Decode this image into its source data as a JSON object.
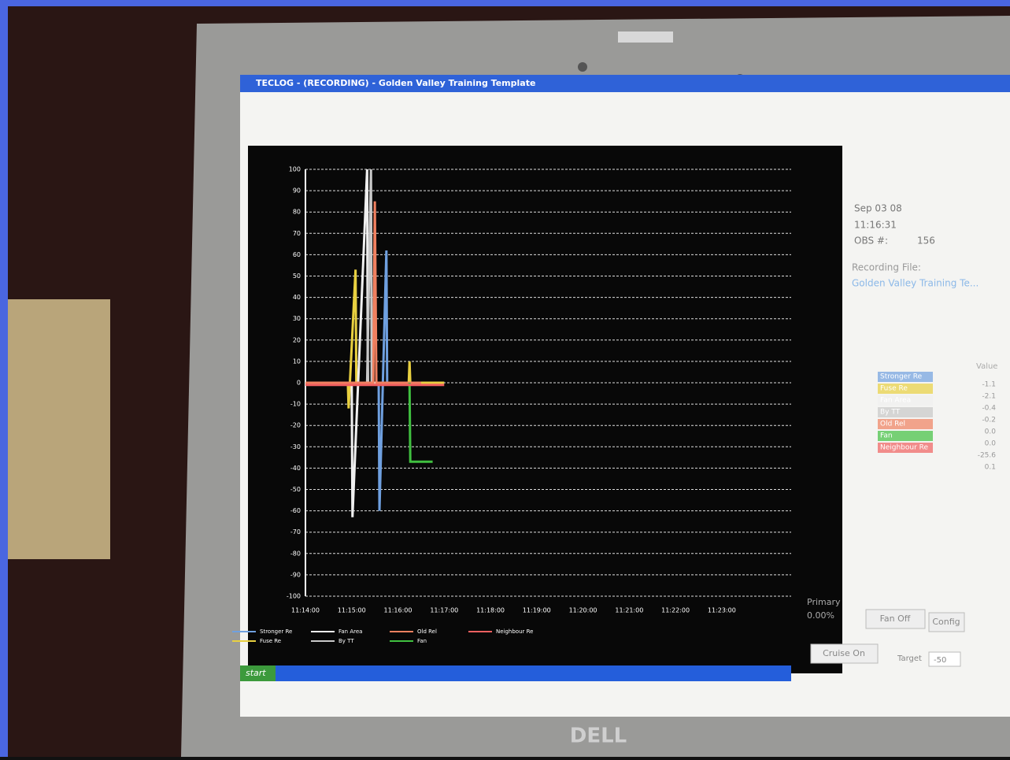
{
  "window": {
    "title": "TECLOG - (RECORDING) - Golden Valley Training Template"
  },
  "status": {
    "date": "Sep 03 08",
    "time": "11:16:31",
    "obs_label": "OBS #:",
    "obs": "156",
    "file_label": "Recording File:",
    "file": "Golden Valley Training Te..."
  },
  "readings": {
    "header": "Value",
    "values": [
      "-1.1",
      "-2.1",
      "-0.4",
      "-0.2",
      "0.0",
      "0.0",
      "-25.6",
      "0.1"
    ]
  },
  "controls": {
    "primary_label": "Primary",
    "primary": "0.00%",
    "fan": "Fan Off",
    "config": "Config",
    "cruise": "Cruise On",
    "target_label": "Target",
    "target": "-50"
  },
  "taskbar": {
    "start": "start"
  },
  "device": {
    "brand": "DELL"
  },
  "chart_data": {
    "type": "line",
    "xlim": [
      "11:14:00",
      "11:24:30"
    ],
    "xticks": [
      "11:14:00",
      "11:15:00",
      "11:16:00",
      "11:17:00",
      "11:18:00",
      "11:19:00",
      "11:20:00",
      "11:21:00",
      "11:22:00",
      "11:23:00"
    ],
    "ylim": [
      -100,
      100
    ],
    "yticks": [
      100,
      90,
      80,
      70,
      60,
      50,
      40,
      30,
      20,
      10,
      0,
      -10,
      -20,
      -30,
      -40,
      -50,
      -60,
      -70,
      -80,
      -90,
      -100
    ],
    "grid": true,
    "series": [
      {
        "name": "Stronger Re",
        "color": "#6fa0e0",
        "x": [
          "11:14:00",
          "11:15:35",
          "11:15:36",
          "11:15:45",
          "11:15:46",
          "11:17:00"
        ],
        "values": [
          0,
          0,
          -60,
          62,
          0,
          0
        ]
      },
      {
        "name": "Fuse Re",
        "color": "#e8d040",
        "x": [
          "11:14:00",
          "11:14:55",
          "11:14:56",
          "11:15:05",
          "11:15:06",
          "11:16:14",
          "11:16:15",
          "11:16:16",
          "11:17:00"
        ],
        "values": [
          0,
          0,
          -12,
          53,
          0,
          0,
          10,
          0,
          0
        ]
      },
      {
        "name": "Fan Area",
        "color": "#f0f0f0",
        "x": [
          "11:14:00",
          "11:15:00",
          "11:15:01",
          "11:15:20",
          "11:15:21",
          "11:16:00"
        ],
        "values": [
          0,
          0,
          -63,
          100,
          0,
          0
        ]
      },
      {
        "name": "By TT",
        "color": "#c8c8c8",
        "x": [
          "11:15:20",
          "11:15:25",
          "11:15:26"
        ],
        "values": [
          0,
          100,
          0
        ]
      },
      {
        "name": "Old Rel",
        "color": "#f08060",
        "x": [
          "11:14:00",
          "11:15:28",
          "11:15:30",
          "11:15:32",
          "11:16:30"
        ],
        "values": [
          0,
          0,
          85,
          0,
          0
        ]
      },
      {
        "name": "Fan",
        "color": "#40c040",
        "x": [
          "11:16:15",
          "11:16:16",
          "11:16:45"
        ],
        "values": [
          0,
          -37,
          -37
        ]
      },
      {
        "name": "Neighbour Re",
        "color": "#f06060",
        "x": [
          "11:14:00",
          "11:17:00"
        ],
        "values": [
          -1,
          -1
        ]
      }
    ]
  }
}
